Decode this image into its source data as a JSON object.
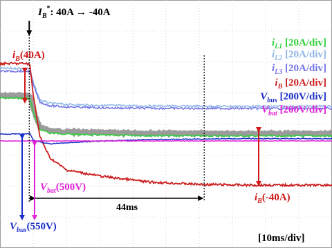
{
  "chart_data": {
    "type": "line",
    "xlabel": "",
    "ylabel": "",
    "x_scale": "[10ms/div]",
    "x_range_ms": [
      0,
      100
    ],
    "divisions": {
      "x": 10,
      "y": 8
    },
    "grid": true,
    "legend_position": "top-right",
    "series": [
      {
        "name": "iL1",
        "scale": "[20A/div]",
        "color": "#2fcf3a",
        "x": [
          0,
          8,
          9,
          10,
          12,
          15,
          20,
          30,
          45,
          60,
          75,
          90,
          100
        ],
        "y": [
          14.5,
          14.5,
          14.3,
          9.6,
          3.4,
          2.2,
          1.8,
          1.45,
          1.25,
          1.15,
          1.12,
          1.12,
          1.12
        ]
      },
      {
        "name": "iL2",
        "scale": "[20A/div]",
        "color": "#8fb6e8",
        "x": [
          0,
          8,
          9,
          10,
          12,
          15,
          20,
          30,
          45,
          60,
          75,
          90,
          100
        ],
        "y": [
          14.8,
          14.8,
          14.6,
          9.9,
          3.7,
          2.5,
          2.1,
          1.75,
          1.55,
          1.45,
          1.42,
          1.42,
          1.42
        ]
      },
      {
        "name": "iL3",
        "scale": "[20A/div]",
        "color": "#7474e6",
        "x": [
          0,
          8,
          9,
          10,
          12,
          15,
          20,
          30,
          45,
          60,
          75,
          90,
          100
        ],
        "y": [
          14.0,
          14.0,
          13.8,
          9.2,
          3.0,
          1.8,
          1.4,
          1.05,
          0.9,
          0.85,
          0.82,
          0.82,
          0.82
        ]
      },
      {
        "name": "iB",
        "scale": "[20A/div]",
        "color": "#cc1f1f",
        "x": [
          0,
          8,
          9,
          10,
          12,
          15,
          20,
          30,
          45,
          60,
          75,
          90,
          100
        ],
        "y": [
          40,
          40,
          39,
          20,
          -8,
          -22,
          -30,
          -34,
          -38,
          -39.5,
          -40,
          -40,
          -40
        ]
      },
      {
        "name": "Vbus",
        "scale": "[200V/div]",
        "color": "#1a2ec8",
        "x": [
          0,
          8,
          9,
          10,
          15,
          25,
          45,
          70,
          100
        ],
        "y": [
          550,
          550,
          552,
          530,
          518,
          525,
          532,
          535,
          535
        ]
      },
      {
        "name": "Vbat",
        "scale": "[200V/div]",
        "color": "#e022d6",
        "x": [
          0,
          100
        ],
        "y": [
          500,
          500
        ]
      }
    ],
    "annotations": {
      "step_title_main": "I",
      "step_title_sub": "B",
      "step_title_sup": "*",
      "step_title_rest": ": 40A → -40A",
      "ib_pos_label_main": "i",
      "ib_pos_label_sub": "B",
      "ib_pos_label_rest": "(40A)",
      "ib_neg_label_main": "i",
      "ib_neg_label_sub": "B",
      "ib_neg_label_rest": "(-40A)",
      "vbat_label_main": "V",
      "vbat_label_sub": "bat",
      "vbat_label_rest": "(500V)",
      "vbus_label_main": "V",
      "vbus_label_sub": "bus",
      "vbus_label_rest": "(550V)",
      "duration": "44ms",
      "timebase": "[10ms/div]"
    },
    "legend": [
      {
        "main": "i",
        "sub": "L1",
        "scale": "[20A/div]",
        "color": "#2fcf3a"
      },
      {
        "main": "i",
        "sub": "L2",
        "scale": "[20A/div]",
        "color": "#8fb6e8"
      },
      {
        "main": "i",
        "sub": "L3",
        "scale": "[20A/div]",
        "color": "#7474e6"
      },
      {
        "main": "i",
        "sub": "B",
        "scale": "[20A/div]",
        "color": "#cc1f1f"
      },
      {
        "main": "V",
        "sub": "bus",
        "scale": "[200V/div]",
        "color": "#1a2ec8"
      },
      {
        "main": "V",
        "sub": "bat",
        "scale": "[200V/div]",
        "color": "#e022d6"
      }
    ],
    "colors": {
      "background": "#ffffff",
      "grid": "#c9c9c9",
      "frame": "#9a9a9a",
      "annotation": "#000000"
    }
  }
}
